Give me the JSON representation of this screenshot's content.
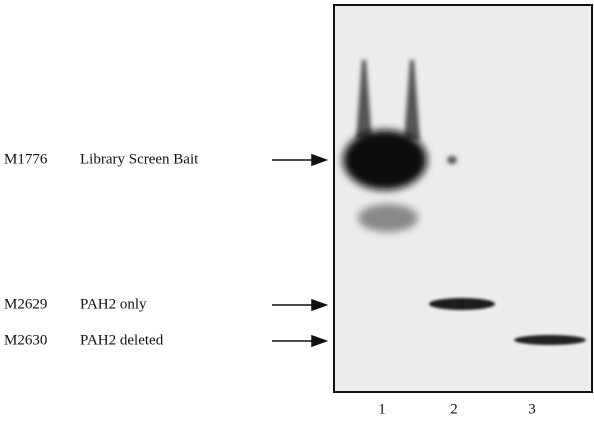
{
  "markers": [
    {
      "id": "M1776",
      "label": "Library Screen Bait"
    },
    {
      "id": "M2629",
      "label": "PAH2 only"
    },
    {
      "id": "M2630",
      "label": "PAH2 deleted"
    }
  ],
  "lanes": [
    "1",
    "2",
    "3"
  ]
}
